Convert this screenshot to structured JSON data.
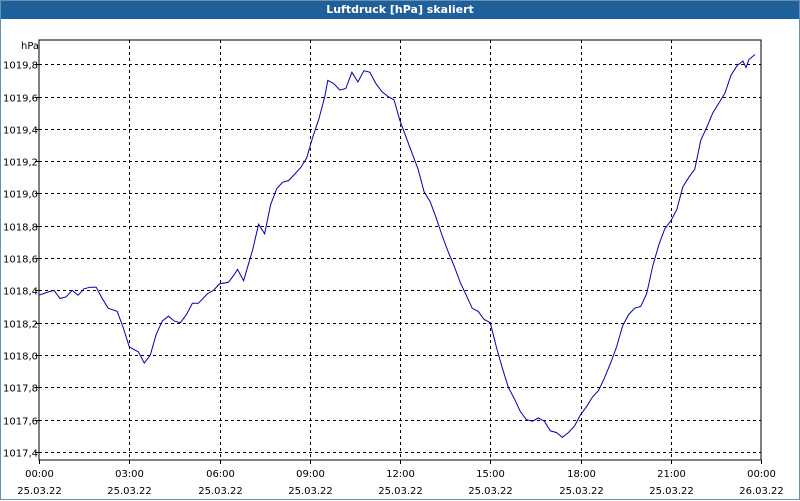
{
  "window": {
    "title": "Luftdruck [hPa] skaliert"
  },
  "chart_data": {
    "type": "line",
    "title": "Luftdruck [hPa] skaliert",
    "ylabel": "hPa",
    "xlabel": "",
    "grid": true,
    "ylim": [
      1017.35,
      1019.95
    ],
    "xlim": [
      0,
      24
    ],
    "y_ticks": [
      {
        "value": 1017.4,
        "label": "1017,4"
      },
      {
        "value": 1017.6,
        "label": "1017,6"
      },
      {
        "value": 1017.8,
        "label": "1017,8"
      },
      {
        "value": 1018.0,
        "label": "1018,0"
      },
      {
        "value": 1018.2,
        "label": "1018,2"
      },
      {
        "value": 1018.4,
        "label": "1018,4"
      },
      {
        "value": 1018.6,
        "label": "1018,6"
      },
      {
        "value": 1018.8,
        "label": "1018,8"
      },
      {
        "value": 1019.0,
        "label": "1019,0"
      },
      {
        "value": 1019.2,
        "label": "1019,2"
      },
      {
        "value": 1019.4,
        "label": "1019,4"
      },
      {
        "value": 1019.6,
        "label": "1019,6"
      },
      {
        "value": 1019.8,
        "label": "1019,8"
      }
    ],
    "x_ticks": [
      {
        "value": 0,
        "time": "00:00",
        "date": "25.03.22"
      },
      {
        "value": 3,
        "time": "03:00",
        "date": "25.03.22"
      },
      {
        "value": 6,
        "time": "06:00",
        "date": "25.03.22"
      },
      {
        "value": 9,
        "time": "09:00",
        "date": "25.03.22"
      },
      {
        "value": 12,
        "time": "12:00",
        "date": "25.03.22"
      },
      {
        "value": 15,
        "time": "15:00",
        "date": "25.03.22"
      },
      {
        "value": 18,
        "time": "18:00",
        "date": "25.03.22"
      },
      {
        "value": 21,
        "time": "21:00",
        "date": "25.03.22"
      },
      {
        "value": 24,
        "time": "00:00",
        "date": "26.03.22"
      }
    ],
    "series": [
      {
        "name": "Luftdruck",
        "color": "#0000aa",
        "points": [
          [
            0.0,
            1018.37
          ],
          [
            0.3,
            1018.39
          ],
          [
            0.5,
            1018.4
          ],
          [
            0.7,
            1018.35
          ],
          [
            0.9,
            1018.36
          ],
          [
            1.1,
            1018.4
          ],
          [
            1.3,
            1018.37
          ],
          [
            1.5,
            1018.41
          ],
          [
            1.7,
            1018.42
          ],
          [
            1.9,
            1018.42
          ],
          [
            2.1,
            1018.35
          ],
          [
            2.3,
            1018.29
          ],
          [
            2.6,
            1018.27
          ],
          [
            2.8,
            1018.17
          ],
          [
            3.0,
            1018.05
          ],
          [
            3.2,
            1018.03
          ],
          [
            3.3,
            1018.02
          ],
          [
            3.5,
            1017.95
          ],
          [
            3.7,
            1018.0
          ],
          [
            3.9,
            1018.13
          ],
          [
            4.1,
            1018.21
          ],
          [
            4.3,
            1018.24
          ],
          [
            4.5,
            1018.21
          ],
          [
            4.7,
            1018.2
          ],
          [
            4.9,
            1018.25
          ],
          [
            5.1,
            1018.32
          ],
          [
            5.3,
            1018.32
          ],
          [
            5.6,
            1018.38
          ],
          [
            5.8,
            1018.4
          ],
          [
            6.0,
            1018.44
          ],
          [
            6.3,
            1018.45
          ],
          [
            6.5,
            1018.5
          ],
          [
            6.6,
            1018.53
          ],
          [
            6.8,
            1018.46
          ],
          [
            7.1,
            1018.65
          ],
          [
            7.3,
            1018.81
          ],
          [
            7.5,
            1018.75
          ],
          [
            7.7,
            1018.93
          ],
          [
            7.9,
            1019.03
          ],
          [
            8.1,
            1019.07
          ],
          [
            8.3,
            1019.08
          ],
          [
            8.5,
            1019.12
          ],
          [
            8.7,
            1019.16
          ],
          [
            8.9,
            1019.22
          ],
          [
            9.1,
            1019.35
          ],
          [
            9.3,
            1019.46
          ],
          [
            9.5,
            1019.6
          ],
          [
            9.6,
            1019.7
          ],
          [
            9.8,
            1019.68
          ],
          [
            10.0,
            1019.64
          ],
          [
            10.2,
            1019.65
          ],
          [
            10.4,
            1019.75
          ],
          [
            10.6,
            1019.69
          ],
          [
            10.8,
            1019.76
          ],
          [
            11.0,
            1019.75
          ],
          [
            11.2,
            1019.68
          ],
          [
            11.4,
            1019.63
          ],
          [
            11.6,
            1019.6
          ],
          [
            11.8,
            1019.58
          ],
          [
            12.0,
            1019.45
          ],
          [
            12.2,
            1019.35
          ],
          [
            12.4,
            1019.25
          ],
          [
            12.6,
            1019.15
          ],
          [
            12.8,
            1019.01
          ],
          [
            13.0,
            1018.95
          ],
          [
            13.2,
            1018.85
          ],
          [
            13.4,
            1018.74
          ],
          [
            13.6,
            1018.64
          ],
          [
            13.8,
            1018.55
          ],
          [
            14.0,
            1018.45
          ],
          [
            14.2,
            1018.37
          ],
          [
            14.4,
            1018.29
          ],
          [
            14.6,
            1018.27
          ],
          [
            14.8,
            1018.22
          ],
          [
            15.0,
            1018.2
          ],
          [
            15.2,
            1018.05
          ],
          [
            15.4,
            1017.92
          ],
          [
            15.6,
            1017.8
          ],
          [
            15.8,
            1017.73
          ],
          [
            16.0,
            1017.65
          ],
          [
            16.2,
            1017.6
          ],
          [
            16.4,
            1017.59
          ],
          [
            16.6,
            1017.61
          ],
          [
            16.8,
            1017.59
          ],
          [
            17.0,
            1017.53
          ],
          [
            17.2,
            1017.52
          ],
          [
            17.4,
            1017.49
          ],
          [
            17.6,
            1017.52
          ],
          [
            17.8,
            1017.56
          ],
          [
            18.0,
            1017.63
          ],
          [
            18.2,
            1017.68
          ],
          [
            18.4,
            1017.74
          ],
          [
            18.6,
            1017.78
          ],
          [
            18.8,
            1017.86
          ],
          [
            19.0,
            1017.95
          ],
          [
            19.2,
            1018.05
          ],
          [
            19.4,
            1018.18
          ],
          [
            19.6,
            1018.25
          ],
          [
            19.8,
            1018.29
          ],
          [
            20.0,
            1018.3
          ],
          [
            20.2,
            1018.38
          ],
          [
            20.4,
            1018.55
          ],
          [
            20.6,
            1018.68
          ],
          [
            20.8,
            1018.78
          ],
          [
            21.0,
            1018.83
          ],
          [
            21.2,
            1018.9
          ],
          [
            21.4,
            1019.04
          ],
          [
            21.6,
            1019.1
          ],
          [
            21.8,
            1019.15
          ],
          [
            22.0,
            1019.33
          ],
          [
            22.2,
            1019.41
          ],
          [
            22.4,
            1019.5
          ],
          [
            22.6,
            1019.56
          ],
          [
            22.8,
            1019.62
          ],
          [
            23.0,
            1019.73
          ],
          [
            23.2,
            1019.79
          ],
          [
            23.4,
            1019.82
          ],
          [
            23.5,
            1019.78
          ],
          [
            23.6,
            1019.83
          ],
          [
            23.8,
            1019.86
          ]
        ]
      }
    ]
  }
}
